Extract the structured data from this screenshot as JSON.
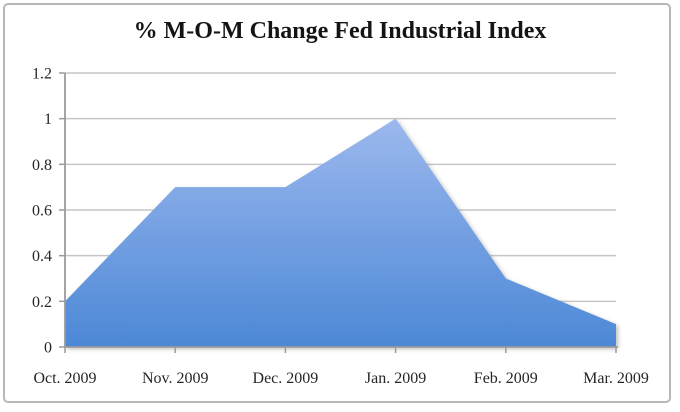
{
  "chart_data": {
    "type": "area",
    "title": "% M-O-M Change Fed Industrial Index",
    "categories": [
      "Oct. 2009",
      "Nov. 2009",
      "Dec. 2009",
      "Jan. 2009",
      "Feb. 2009",
      "Mar. 2009"
    ],
    "values": [
      0.2,
      0.7,
      0.7,
      1.0,
      0.3,
      0.1
    ],
    "xlabel": "",
    "ylabel": "",
    "ylim": [
      0,
      1.2
    ],
    "yticks": [
      0,
      0.2,
      0.4,
      0.6,
      0.8,
      1,
      1.2
    ],
    "ytick_labels": [
      "0",
      "0.2",
      "0.4",
      "0.6",
      "0.8",
      "1",
      "1.2"
    ],
    "grid": true,
    "legend_position": "none",
    "colors": {
      "area_fill_top": "#9cb8ee",
      "area_fill_bottom": "#4c88d6",
      "gridline": "#c6c6c6",
      "axis": "#9b9b9b",
      "tick_text": "#262626",
      "title_text": "#141414",
      "frame_border": "#b8b8b8"
    }
  }
}
